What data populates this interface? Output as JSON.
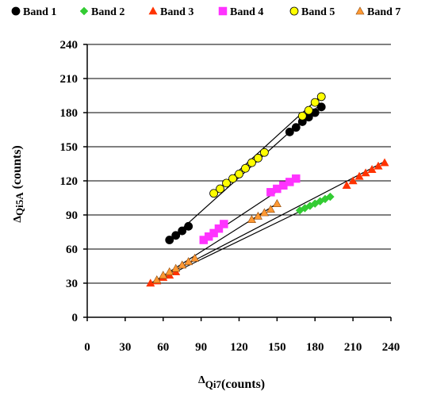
{
  "chart_data": {
    "type": "scatter",
    "xlabel": {
      "delta": "Δ",
      "main": "Qi7",
      "unit": "(counts)"
    },
    "ylabel": {
      "delta": "Δ",
      "main": "Qi5A",
      "unit": " (counts)"
    },
    "xlim": [
      0,
      240
    ],
    "ylim": [
      0,
      240
    ],
    "x_ticks": [
      0,
      30,
      60,
      90,
      120,
      150,
      180,
      210,
      240
    ],
    "y_ticks": [
      0,
      30,
      60,
      90,
      120,
      150,
      180,
      210,
      240
    ],
    "x_tick_labels": [
      "0",
      "30",
      "60",
      "90",
      "120",
      "150",
      "180",
      "210",
      "240"
    ],
    "y_tick_labels": [
      "0",
      "30",
      "60",
      "90",
      "120",
      "150",
      "180",
      "210",
      "240"
    ],
    "grid": "horizontal",
    "legend_position": "top",
    "series": [
      {
        "name": "Band 1",
        "marker": "circle",
        "color": "#000000",
        "x": [
          65,
          70,
          75,
          80,
          160,
          165,
          170,
          175,
          180,
          185
        ],
        "y": [
          68,
          72,
          76,
          80,
          163,
          167,
          172,
          176,
          180,
          185
        ],
        "fit": [
          [
            65,
            68
          ],
          [
            185,
            188
          ]
        ]
      },
      {
        "name": "Band 2",
        "marker": "diamond",
        "color": "#33cc33",
        "x": [
          168,
          172,
          176,
          180,
          184,
          188,
          192
        ],
        "y": [
          94,
          96,
          98,
          100,
          102,
          104,
          106
        ],
        "fit": [
          [
            55,
            32
          ],
          [
            192,
            106
          ]
        ]
      },
      {
        "name": "Band 3",
        "marker": "triangle",
        "color": "#ff3300",
        "x": [
          50,
          55,
          60,
          65,
          70,
          205,
          210,
          215,
          220,
          225,
          230,
          235
        ],
        "y": [
          30,
          32,
          35,
          37,
          40,
          116,
          120,
          124,
          127,
          130,
          133,
          136
        ],
        "fit": [
          [
            50,
            30
          ],
          [
            235,
            137
          ]
        ]
      },
      {
        "name": "Band 4",
        "marker": "square",
        "color": "#ff33ff",
        "x": [
          92,
          96,
          100,
          104,
          108,
          145,
          150,
          155,
          160,
          165
        ],
        "y": [
          68,
          71,
          74,
          78,
          82,
          110,
          113,
          116,
          119,
          122
        ],
        "fit": [
          [
            92,
            68
          ],
          [
            168,
            124
          ]
        ]
      },
      {
        "name": "Band 5",
        "marker": "circle",
        "color": "#ffff00",
        "x": [
          100,
          105,
          110,
          115,
          120,
          125,
          130,
          135,
          140,
          170,
          175,
          180,
          185
        ],
        "y": [
          109,
          113,
          118,
          122,
          126,
          131,
          136,
          140,
          145,
          177,
          182,
          189,
          194
        ],
        "fit": [
          [
            100,
            109
          ],
          [
            185,
            195
          ]
        ]
      },
      {
        "name": "Band 7",
        "marker": "triangle",
        "color": "#ff9933",
        "x": [
          55,
          60,
          65,
          70,
          75,
          80,
          85,
          130,
          135,
          140,
          145,
          150
        ],
        "y": [
          33,
          37,
          40,
          43,
          46,
          49,
          52,
          86,
          89,
          92,
          95,
          100
        ],
        "fit": [
          [
            55,
            33
          ],
          [
            150,
            100
          ]
        ]
      }
    ]
  }
}
